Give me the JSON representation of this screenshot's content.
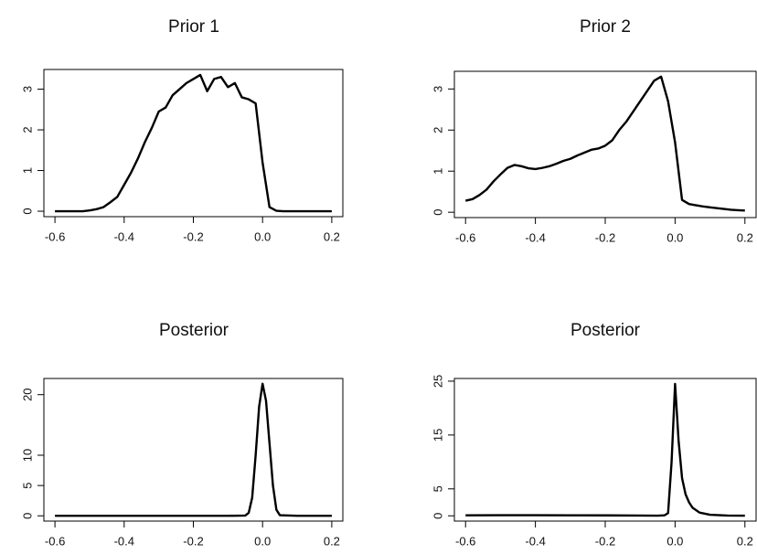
{
  "chart_data": [
    {
      "type": "line",
      "title": "Prior 1",
      "color": "#000000",
      "x": [
        -0.6,
        -0.58,
        -0.56,
        -0.54,
        -0.52,
        -0.5,
        -0.48,
        -0.46,
        -0.44,
        -0.42,
        -0.4,
        -0.38,
        -0.36,
        -0.34,
        -0.32,
        -0.3,
        -0.28,
        -0.26,
        -0.24,
        -0.22,
        -0.2,
        -0.18,
        -0.16,
        -0.14,
        -0.12,
        -0.1,
        -0.08,
        -0.06,
        -0.04,
        -0.02,
        0,
        0.02,
        0.04,
        0.06,
        0.08,
        0.1,
        0.12,
        0.14,
        0.16,
        0.18,
        0.2
      ],
      "values": [
        0,
        0,
        0,
        0,
        0,
        0.02,
        0.05,
        0.1,
        0.22,
        0.35,
        0.65,
        0.95,
        1.3,
        1.7,
        2.05,
        2.45,
        2.55,
        2.85,
        3.0,
        3.15,
        3.25,
        3.35,
        2.95,
        3.25,
        3.3,
        3.05,
        3.15,
        2.8,
        2.75,
        2.65,
        1.2,
        0.1,
        0.01,
        0,
        0,
        0,
        0,
        0,
        0,
        0,
        0
      ],
      "xlim": [
        -0.632,
        0.232
      ],
      "ylim": [
        -0.134,
        3.484
      ],
      "xticks": [
        -0.6,
        -0.4,
        -0.2,
        {
          "value": 0,
          "label": "0.0"
        },
        0.2
      ],
      "yticks": [
        0,
        1,
        2,
        3
      ]
    },
    {
      "type": "line",
      "title": "Prior 2",
      "color": "#000000",
      "x": [
        -0.6,
        -0.58,
        -0.56,
        -0.54,
        -0.52,
        -0.5,
        -0.48,
        -0.46,
        -0.44,
        -0.42,
        -0.4,
        -0.38,
        -0.36,
        -0.34,
        -0.32,
        -0.3,
        -0.28,
        -0.26,
        -0.24,
        -0.22,
        -0.2,
        -0.18,
        -0.16,
        -0.14,
        -0.12,
        -0.1,
        -0.08,
        -0.06,
        -0.04,
        -0.02,
        0,
        0.02,
        0.04,
        0.06,
        0.08,
        0.1,
        0.12,
        0.14,
        0.16,
        0.18,
        0.2
      ],
      "values": [
        0.28,
        0.32,
        0.42,
        0.55,
        0.75,
        0.92,
        1.08,
        1.15,
        1.12,
        1.07,
        1.05,
        1.08,
        1.12,
        1.18,
        1.25,
        1.3,
        1.38,
        1.45,
        1.52,
        1.55,
        1.62,
        1.75,
        2.0,
        2.2,
        2.45,
        2.7,
        2.95,
        3.2,
        3.3,
        2.7,
        1.7,
        0.3,
        0.2,
        0.17,
        0.14,
        0.12,
        0.1,
        0.08,
        0.06,
        0.05,
        0.04
      ],
      "xlim": [
        -0.632,
        0.232
      ],
      "ylim": [
        -0.13,
        3.43
      ],
      "xticks": [
        -0.6,
        -0.4,
        -0.2,
        {
          "value": 0,
          "label": "0.0"
        },
        0.2
      ],
      "yticks": [
        0,
        1,
        2,
        3
      ]
    },
    {
      "type": "line",
      "title": "Posterior",
      "color": "#000000",
      "x": [
        -0.6,
        -0.5,
        -0.4,
        -0.3,
        -0.2,
        -0.1,
        -0.05,
        -0.04,
        -0.03,
        -0.02,
        -0.01,
        0,
        0.01,
        0.02,
        0.03,
        0.04,
        0.05,
        0.1,
        0.15,
        0.2
      ],
      "values": [
        0,
        0,
        0,
        0,
        0,
        0,
        0.05,
        0.5,
        3,
        10,
        18,
        21.8,
        19,
        12,
        5,
        1,
        0.1,
        0,
        0,
        0
      ],
      "xlim": [
        -0.632,
        0.232
      ],
      "ylim": [
        -0.87,
        22.67
      ],
      "xticks": [
        -0.6,
        -0.4,
        -0.2,
        {
          "value": 0,
          "label": "0.0"
        },
        0.2
      ],
      "yticks": [
        0,
        5,
        10,
        20
      ]
    },
    {
      "type": "line",
      "title": "Posterior",
      "color": "#000000",
      "x": [
        -0.6,
        -0.5,
        -0.4,
        -0.3,
        -0.2,
        -0.1,
        -0.05,
        -0.03,
        -0.02,
        -0.01,
        0,
        0.01,
        0.02,
        0.03,
        0.04,
        0.05,
        0.07,
        0.1,
        0.15,
        0.2
      ],
      "values": [
        0.1,
        0.12,
        0.12,
        0.1,
        0.08,
        0.05,
        0.03,
        0.1,
        0.5,
        10,
        24.5,
        14,
        7,
        4,
        2.5,
        1.5,
        0.6,
        0.2,
        0.05,
        0.02
      ],
      "xlim": [
        -0.632,
        0.232
      ],
      "ylim": [
        -0.98,
        25.5
      ],
      "xticks": [
        -0.6,
        -0.4,
        -0.2,
        {
          "value": 0,
          "label": "0.0"
        },
        0.2
      ],
      "yticks": [
        0,
        5,
        15,
        25
      ]
    }
  ]
}
